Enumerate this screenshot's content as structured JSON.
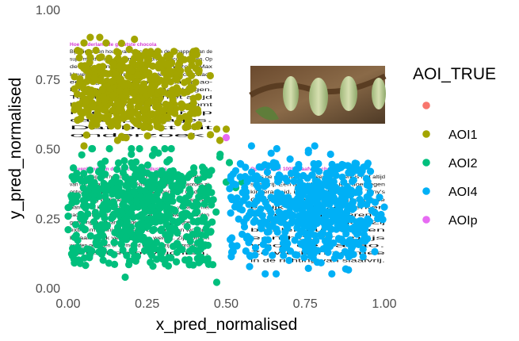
{
  "chart_data": {
    "type": "scatter",
    "xlabel": "x_pred_normalised",
    "ylabel": "y_pred_normalised",
    "xlim": [
      0,
      1
    ],
    "ylim": [
      0,
      1
    ],
    "x_ticks": [
      "0.00",
      "0.25",
      "0.50",
      "0.75",
      "1.00"
    ],
    "y_ticks": [
      "0.00",
      "0.25",
      "0.50",
      "0.75",
      "1.00"
    ],
    "grid": false,
    "legend": {
      "title": "AOI_TRUE",
      "placement": "right",
      "entries": [
        {
          "label": "",
          "color": "#F8766D"
        },
        {
          "label": "AOI1",
          "color": "#A3A500"
        },
        {
          "label": "AOI2",
          "color": "#00BF7D"
        },
        {
          "label": "AOI4",
          "color": "#00B0F6"
        },
        {
          "label": "AOIp",
          "color": "#E76BF3"
        }
      ]
    },
    "series": [
      {
        "name": "AOI1",
        "color": "#A3A500",
        "count": 520,
        "x_range": [
          0.02,
          0.45
        ],
        "y_range": [
          0.53,
          0.9
        ],
        "x_center": 0.18,
        "y_center": 0.7
      },
      {
        "name": "AOI2",
        "color": "#00BF7D",
        "count": 600,
        "x_range": [
          0.0,
          0.5
        ],
        "y_range": [
          0.02,
          0.5
        ],
        "x_center": 0.2,
        "y_center": 0.32
      },
      {
        "name": "AOI4",
        "color": "#00B0F6",
        "count": 560,
        "x_range": [
          0.5,
          1.0
        ],
        "y_range": [
          0.05,
          0.51
        ],
        "x_center": 0.78,
        "y_center": 0.28
      },
      {
        "name": "AOIp",
        "color": "#E76BF3",
        "count": 1,
        "points": [
          [
            0.5,
            0.54
          ]
        ]
      }
    ],
    "outliers": {
      "AOI1": [
        [
          0.07,
          0.9
        ],
        [
          0.1,
          0.9
        ],
        [
          0.05,
          0.88
        ],
        [
          0.12,
          0.88
        ],
        [
          0.3,
          0.6
        ],
        [
          0.41,
          0.58
        ],
        [
          0.38,
          0.6
        ],
        [
          0.47,
          0.57
        ],
        [
          0.45,
          0.55
        ],
        [
          0.48,
          0.53
        ],
        [
          0.5,
          0.57
        ],
        [
          0.05,
          0.51
        ]
      ],
      "AOI2": [
        [
          0.47,
          0.02
        ],
        [
          0.37,
          0.1
        ],
        [
          0.35,
          0.15
        ],
        [
          0.48,
          0.47
        ],
        [
          0.51,
          0.45
        ],
        [
          0.5,
          0.38
        ],
        [
          0.53,
          0.36
        ],
        [
          0.55,
          0.38
        ],
        [
          0.54,
          0.3
        ],
        [
          0.45,
          0.2
        ],
        [
          0.32,
          0.46
        ],
        [
          0.2,
          0.48
        ]
      ],
      "AOI4": [
        [
          0.58,
          0.51
        ],
        [
          0.66,
          0.5
        ],
        [
          0.78,
          0.51
        ],
        [
          0.83,
          0.48
        ],
        [
          0.93,
          0.42
        ],
        [
          0.61,
          0.34
        ],
        [
          0.56,
          0.4
        ],
        [
          0.6,
          0.27
        ],
        [
          0.63,
          0.2
        ],
        [
          0.76,
          0.07
        ],
        [
          0.8,
          0.09
        ],
        [
          0.9,
          0.15
        ],
        [
          0.97,
          0.13
        ],
        [
          0.55,
          0.28
        ]
      ]
    }
  },
  "background_stimulus": {
    "block1": {
      "heading": "Hoe Nederland de grootste chocola",
      "lines": [
        "Bijna iedereen houdt van chocolade. In de schappen van de",
        "supermarkt vind je daarom veel soorten chocoladerepen. Op",
        "de verpakking staat een keurmerk, zoals Max",
        "Havelaar. Dat keurmerk garandeert dat chocolade",
        "eerlijk geproduceerd is en dat cacao-",
        "boeren voldoende betaald krijgen.",
        "Toch is dat lang niet altijd",
        "het geval. Kinderarbeid komt",
        "nog veel voor op",
        "cacaoplantages.",
        "Dat blijkt uit",
        "onderzoek."
      ]
    },
    "block2": {
      "heading": "Slavenhandel in de chocolade-industrie",
      "lines": [
        "Tegenwoordig komt het nog steeds voor dat kinderen werken. Het komt",
        "van cacaoplantages in West-Afrika vandaan. Vaak worden zij",
        "ontvoerd en verkocht aan plantage-eigenaren. Omdat ze",
        "niet genoeg verdienen, moeten de kinderen hard werken.",
        "Wanneer de kinderen op de plantages aankomen, werken ze met",
        "cacaobonen. Zij moeten zware zakken sjouwen en worden",
        "gedwongen om lange dagen te werken. Zij krijgen slecht",
        "extreem weinig betaald. De kinderen worden",
        "betaald. Ook verdienen ze weinig. Zij worden",
        "worden geslagen of vermoord wanneer zij zich proberen te",
        "verzetten of vluchten."
      ]
    },
    "block3": {
      "heading": "Op weg naar 100% slaafvrije chocola",
      "lines": [
        "Zelfs de chocolade met een keurmerk is niet altijd",
        "slaafvrij. Een bedrijf dat wel iets doet tegen",
        "kinderarbeid, is Tony's Chocolonely. Tony's",
        "Chocolonely wil dat alle chocolade",
        "eerlijk wordt. Ze werken",
        "samen met de boeren in",
        "steeds meer landen. Zij",
        "betalen hun boeren",
        "een hogere prijs",
        "voor de cacao.",
        "Zo werken ze mee",
        "in de richting van slaafvrij."
      ]
    }
  }
}
